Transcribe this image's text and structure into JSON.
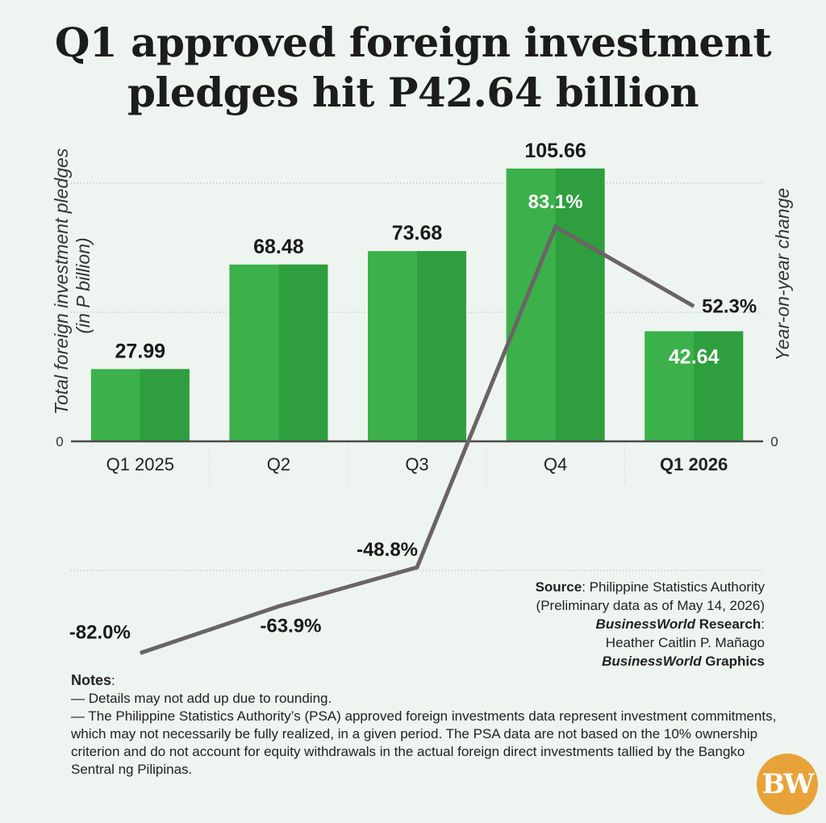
{
  "title_lines": [
    "Q1 approved foreign investment",
    "pledges hit P42.64 billion"
  ],
  "chart_data": {
    "type": "bar",
    "categories": [
      "Q1 2025",
      "Q2",
      "Q3",
      "Q4",
      "Q1 2026"
    ],
    "series": [
      {
        "values": [
          27.99,
          68.48,
          73.68,
          105.66,
          42.64
        ]
      },
      {
        "type": "line",
        "values": [
          -82.0,
          -63.9,
          -48.8,
          83.1,
          52.3
        ]
      }
    ],
    "value_labels": [
      "27.99",
      "68.48",
      "73.68",
      "105.66",
      "42.64"
    ],
    "change_labels": [
      "-82.0%",
      "-63.9%",
      "-48.8%",
      "83.1%",
      "52.3%"
    ],
    "ylabel_left_line1": "Total foreign investment pledges",
    "ylabel_left_line2": "(in P billion)",
    "ylabel_right": "Year-on-year change",
    "y_left_tick": "0",
    "y_right_tick": "0",
    "ylim_left": [
      0,
      120
    ],
    "ylim_right": [
      -100,
      100
    ],
    "grid": true,
    "bar_color": "#3cb04a",
    "bar_shade_color": "#2f9e3e",
    "line_color": "#6b6466"
  },
  "source": {
    "label": "Source",
    "text": ": Philippine Statistics Authority",
    "prelim": "(Preliminary data as of May 14, 2026)",
    "research_brand": "BusinessWorld",
    "research_label": " Research",
    "research_sep": ":",
    "researcher": "Heather Caitlin P. Mañago",
    "graphics_brand": "BusinessWorld",
    "graphics_label": " Graphics"
  },
  "notes": {
    "heading": "Notes",
    "heading_sep": ":",
    "items": [
      "— Details may not add up due to rounding.",
      "— The Philippine Statistics Authority’s (PSA) approved foreign investments data represent investment commitments, which may not necessarily be fully realized, in a given period. The PSA data are not based on the 10% ownership criterion and do not account for equity withdrawals in the actual foreign direct investments tallied by the Bangko Sentral ng Pilipinas."
    ]
  },
  "logo_text": "BW"
}
